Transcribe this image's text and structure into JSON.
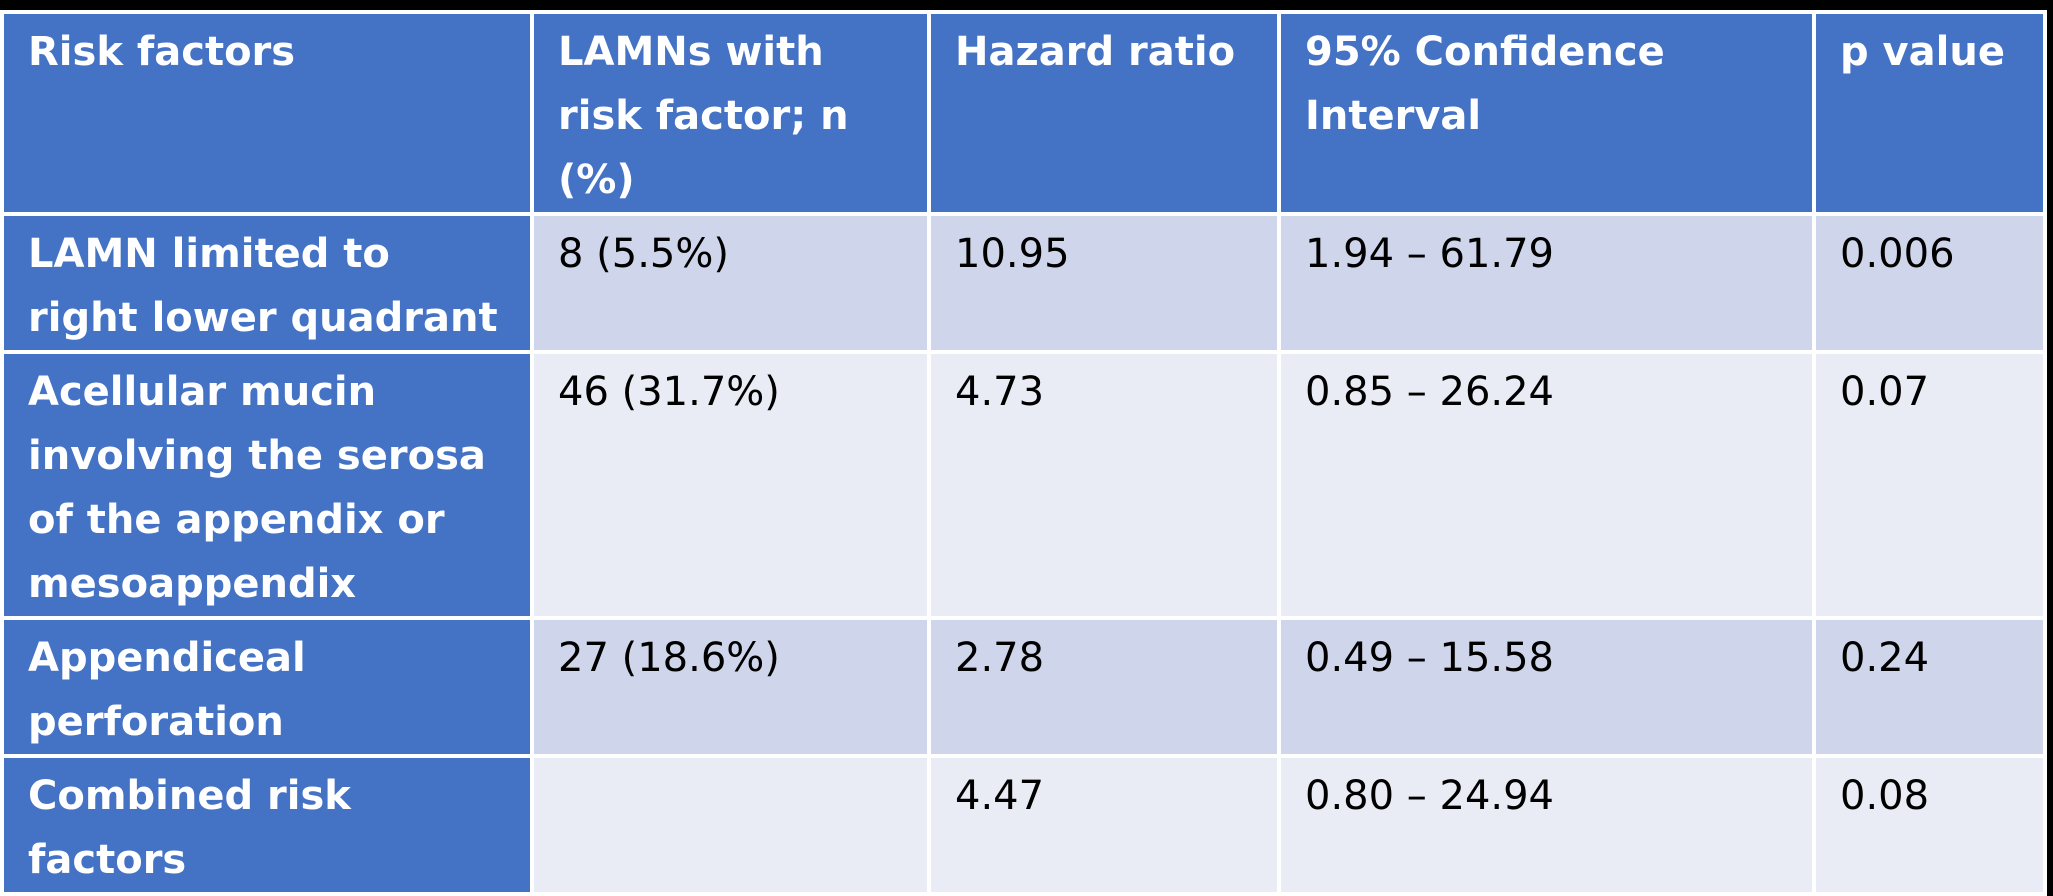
{
  "table": {
    "headers": [
      "Risk factors",
      "LAMNs with risk factor; n (%)",
      "Hazard ratio",
      "95% Confidence Interval",
      "p value"
    ],
    "rows": [
      {
        "factor": "LAMN limited to right lower quadrant",
        "count": "8 (5.5%)",
        "hazard_ratio": "10.95",
        "ci": "1.94 – 61.79",
        "p": "0.006"
      },
      {
        "factor": "Acellular mucin involving the serosa of the appendix or mesoappendix",
        "count": "46 (31.7%)",
        "hazard_ratio": "4.73",
        "ci": "0.85 – 26.24",
        "p": "0.07"
      },
      {
        "factor": "Appendiceal perforation",
        "count": "27 (18.6%)",
        "hazard_ratio": "2.78",
        "ci": "0.49 – 15.58",
        "p": "0.24"
      },
      {
        "factor": "Combined risk factors",
        "count": "",
        "hazard_ratio": "4.47",
        "ci": "0.80 – 24.94",
        "p": "0.08"
      }
    ]
  },
  "colors": {
    "header_bg": "#4472c4",
    "row_odd_bg": "#cfd5ea",
    "row_even_bg": "#e9ebf5",
    "border": "#ffffff",
    "page_bg": "#000000"
  }
}
